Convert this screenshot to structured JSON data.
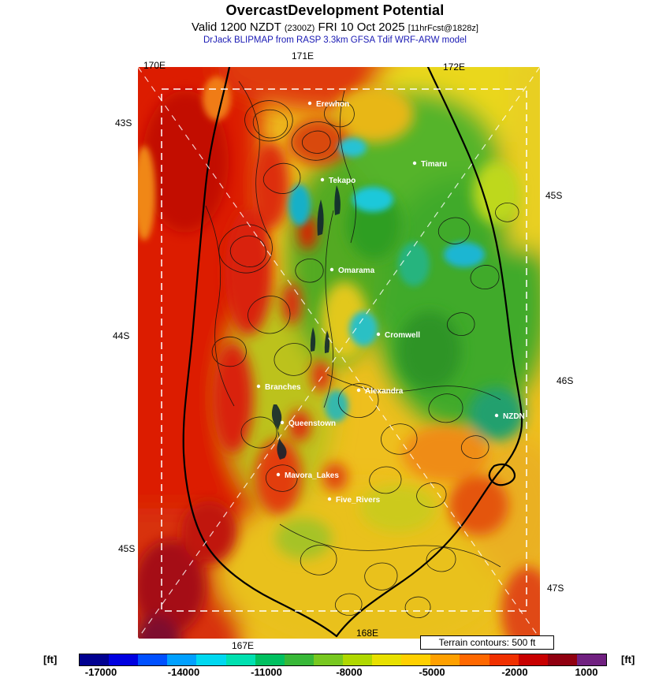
{
  "header": {
    "title": "OvercastDevelopment Potential",
    "valid_prefix": "Valid 1200 NZDT",
    "valid_zulu": "(2300Z)",
    "valid_date": "FRI 10 Oct 2025",
    "valid_fcst": "[11hrFcst@1828z]",
    "model_line": "DrJack BLIPMAP from RASP 3.3km GFSA Tdif WRF-ARW model"
  },
  "map": {
    "axis_labels": {
      "lon_170": "170E",
      "lon_171": "171E",
      "lon_172": "172E",
      "lon_167": "167E",
      "lon_168": "168E",
      "lat_43s": "43S",
      "lat_44s": "44S",
      "lat_45s_left": "45S",
      "lat_45s_right": "45S",
      "lat_46s": "46S",
      "lat_47s": "47S"
    },
    "stations": [
      {
        "name": "Erewhon"
      },
      {
        "name": "Timaru"
      },
      {
        "name": "Tekapo"
      },
      {
        "name": "Omarama"
      },
      {
        "name": "Cromwell"
      },
      {
        "name": "Branches"
      },
      {
        "name": "Alexandra"
      },
      {
        "name": "NZDN"
      },
      {
        "name": "Queenstown"
      },
      {
        "name": "Mavora_Lakes"
      },
      {
        "name": "Five_Rivers"
      }
    ],
    "legend_box": "Terrain contours: 500 ft"
  },
  "colorbar": {
    "unit_left": "[ft]",
    "unit_right": "[ft]",
    "ticks": [
      "-17000",
      "-14000",
      "-11000",
      "-8000",
      "-5000",
      "-2000",
      "1000"
    ],
    "colors": [
      "#000090",
      "#0000e0",
      "#0050ff",
      "#00a0ff",
      "#00d8f0",
      "#00e0b0",
      "#00c060",
      "#38b838",
      "#78c820",
      "#b0d800",
      "#e8e000",
      "#ffd000",
      "#ffa000",
      "#ff6800",
      "#f03000",
      "#c80000",
      "#900010",
      "#702080"
    ]
  }
}
